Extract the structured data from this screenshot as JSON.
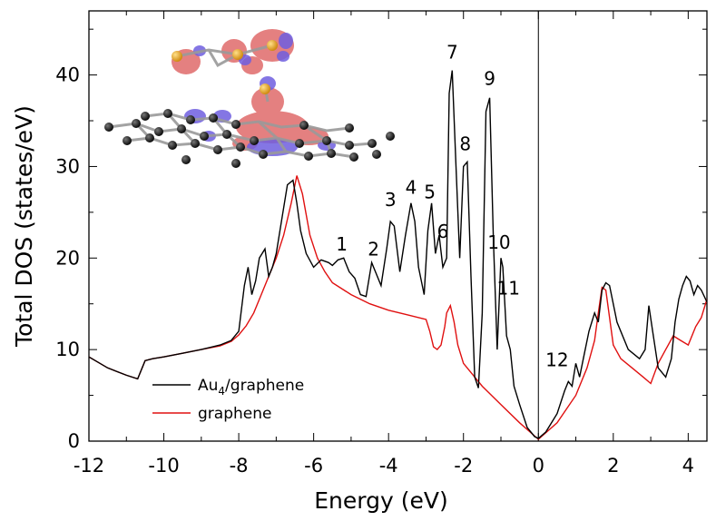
{
  "chart_data": {
    "type": "line",
    "title": "",
    "xlabel": "Energy (eV)",
    "ylabel": "Total DOS (states/eV)",
    "xlim": [
      -12,
      4.5
    ],
    "ylim": [
      0,
      47
    ],
    "xticks": [
      -12,
      -10,
      -8,
      -6,
      -4,
      -2,
      0,
      2,
      4
    ],
    "yticks": [
      0,
      10,
      20,
      30,
      40
    ],
    "vline_x": 0,
    "legend_position": "bottom-left",
    "legend_entries": [
      "Au4/graphene",
      "graphene"
    ],
    "series": [
      {
        "name": "Au4/graphene",
        "color": "#000000",
        "x": [
          -12.0,
          -11.5,
          -11.0,
          -10.7,
          -10.5,
          -10.3,
          -10.0,
          -9.5,
          -9.0,
          -8.5,
          -8.2,
          -8.0,
          -7.85,
          -7.75,
          -7.65,
          -7.55,
          -7.45,
          -7.3,
          -7.2,
          -7.1,
          -7.0,
          -6.9,
          -6.8,
          -6.7,
          -6.55,
          -6.45,
          -6.35,
          -6.2,
          -6.0,
          -5.8,
          -5.6,
          -5.5,
          -5.35,
          -5.2,
          -5.05,
          -4.9,
          -4.75,
          -4.6,
          -4.45,
          -4.35,
          -4.2,
          -4.05,
          -3.95,
          -3.85,
          -3.7,
          -3.55,
          -3.4,
          -3.3,
          -3.2,
          -3.05,
          -2.95,
          -2.85,
          -2.75,
          -2.65,
          -2.55,
          -2.45,
          -2.38,
          -2.3,
          -2.2,
          -2.1,
          -2.0,
          -1.9,
          -1.8,
          -1.7,
          -1.6,
          -1.5,
          -1.4,
          -1.3,
          -1.2,
          -1.1,
          -1.0,
          -0.95,
          -0.85,
          -0.75,
          -0.65,
          -0.5,
          -0.3,
          -0.1,
          0.0,
          0.2,
          0.5,
          0.7,
          0.8,
          0.9,
          1.0,
          1.1,
          1.2,
          1.35,
          1.5,
          1.6,
          1.7,
          1.8,
          1.9,
          2.1,
          2.4,
          2.7,
          2.85,
          2.95,
          3.05,
          3.2,
          3.4,
          3.55,
          3.65,
          3.75,
          3.85,
          3.95,
          4.05,
          4.15,
          4.25,
          4.35,
          4.5
        ],
        "y": [
          9.2,
          8.0,
          7.2,
          6.8,
          8.8,
          9.0,
          9.2,
          9.6,
          10.0,
          10.5,
          11.0,
          12.0,
          17.0,
          19.0,
          16.0,
          17.5,
          20.0,
          21.0,
          18.0,
          19.0,
          20.5,
          23.0,
          25.5,
          28.0,
          28.5,
          26.0,
          23.0,
          20.5,
          19.0,
          19.8,
          19.5,
          19.2,
          19.8,
          20.0,
          18.5,
          17.8,
          16.0,
          15.8,
          19.5,
          18.5,
          17.0,
          21.0,
          24.0,
          23.5,
          18.5,
          22.5,
          26.0,
          24.0,
          19.0,
          16.0,
          23.0,
          26.0,
          20.5,
          22.5,
          19.0,
          20.0,
          38.0,
          40.5,
          30.0,
          20.0,
          30.0,
          30.5,
          18.0,
          7.0,
          5.8,
          14.0,
          36.0,
          37.5,
          22.0,
          10.0,
          20.0,
          19.0,
          11.5,
          10.0,
          6.0,
          4.0,
          1.5,
          0.5,
          0.3,
          1.0,
          3.0,
          5.5,
          6.5,
          6.0,
          8.5,
          7.0,
          9.0,
          12.0,
          14.0,
          13.0,
          16.5,
          17.3,
          17.0,
          13.0,
          10.0,
          9.0,
          10.0,
          14.8,
          12.0,
          8.0,
          7.0,
          9.0,
          13.0,
          15.5,
          17.0,
          18.0,
          17.5,
          16.0,
          17.0,
          16.5,
          15.2
        ]
      },
      {
        "name": "graphene",
        "color": "#e01010",
        "x": [
          -12.0,
          -11.5,
          -11.0,
          -10.7,
          -10.5,
          -10.3,
          -10.0,
          -9.5,
          -9.0,
          -8.5,
          -8.2,
          -8.0,
          -7.8,
          -7.6,
          -7.4,
          -7.2,
          -7.0,
          -6.8,
          -6.6,
          -6.45,
          -6.3,
          -6.1,
          -5.9,
          -5.7,
          -5.5,
          -5.0,
          -4.5,
          -4.0,
          -3.5,
          -3.0,
          -2.9,
          -2.8,
          -2.7,
          -2.6,
          -2.5,
          -2.45,
          -2.35,
          -2.25,
          -2.15,
          -2.0,
          -1.5,
          -1.0,
          -0.5,
          0.0,
          0.5,
          1.0,
          1.3,
          1.5,
          1.6,
          1.7,
          1.8,
          1.9,
          2.0,
          2.2,
          2.5,
          2.8,
          3.0,
          3.2,
          3.4,
          3.6,
          3.8,
          4.0,
          4.2,
          4.35,
          4.5
        ],
        "y": [
          9.2,
          8.0,
          7.2,
          6.8,
          8.8,
          9.0,
          9.2,
          9.6,
          10.0,
          10.4,
          10.9,
          11.6,
          12.6,
          14.0,
          16.0,
          18.0,
          20.0,
          22.5,
          26.0,
          29.0,
          27.0,
          22.5,
          20.0,
          18.5,
          17.3,
          16.0,
          15.0,
          14.3,
          13.8,
          13.3,
          12.0,
          10.3,
          10.0,
          10.5,
          12.5,
          14.0,
          14.8,
          13.0,
          10.5,
          8.5,
          6.0,
          4.0,
          2.0,
          0.2,
          2.0,
          5.0,
          8.0,
          11.0,
          14.0,
          16.8,
          16.5,
          13.5,
          10.5,
          9.0,
          8.0,
          7.0,
          6.3,
          8.5,
          10.0,
          11.5,
          11.0,
          10.5,
          12.5,
          13.5,
          15.5
        ]
      }
    ],
    "annotations": [
      {
        "text": "1",
        "x": -5.25,
        "y": 20.8
      },
      {
        "text": "2",
        "x": -4.4,
        "y": 20.3
      },
      {
        "text": "3",
        "x": -3.95,
        "y": 25.7
      },
      {
        "text": "4",
        "x": -3.4,
        "y": 27.0
      },
      {
        "text": "5",
        "x": -2.9,
        "y": 26.5
      },
      {
        "text": "6",
        "x": -2.55,
        "y": 22.2
      },
      {
        "text": "7",
        "x": -2.3,
        "y": 41.8
      },
      {
        "text": "8",
        "x": -1.95,
        "y": 31.8
      },
      {
        "text": "9",
        "x": -1.3,
        "y": 38.9
      },
      {
        "text": "10",
        "x": -1.05,
        "y": 21.0
      },
      {
        "text": "11",
        "x": -0.8,
        "y": 16.0
      },
      {
        "text": "12",
        "x": 0.5,
        "y": 8.2
      }
    ]
  },
  "inset_image": {
    "description_icon": "au4-graphene-charge-density-icon",
    "colors": {
      "carbon": "#111111",
      "bond": "#9a9a9a",
      "gold": "#e6a21e",
      "density_positive": "#e06a6a",
      "density_negative": "#6f5fe0"
    }
  }
}
